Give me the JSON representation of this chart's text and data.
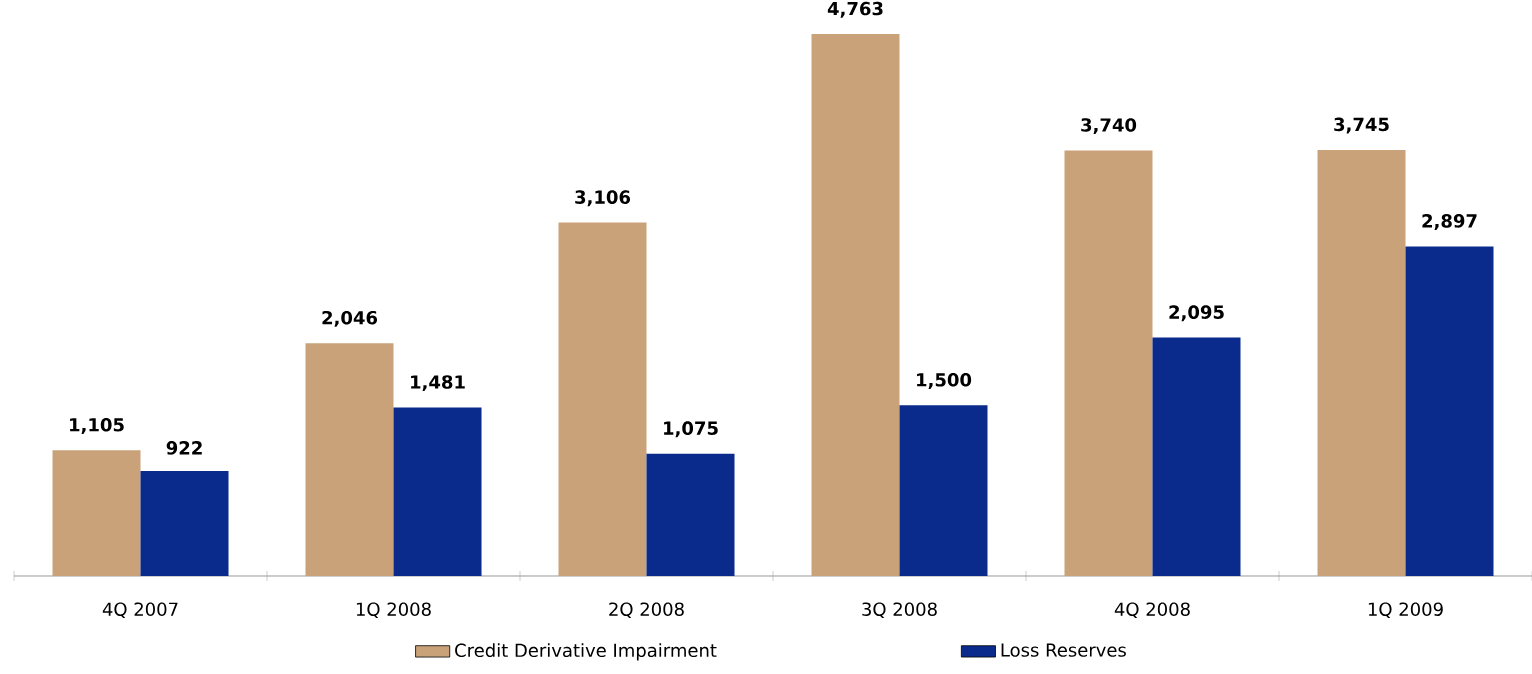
{
  "chart_data": {
    "type": "bar",
    "categories": [
      "4Q 2007",
      "1Q 2008",
      "2Q 2008",
      "3Q 2008",
      "4Q 2008",
      "1Q 2009"
    ],
    "series": [
      {
        "name": "Credit Derivative Impairment",
        "color": "#c9a27a",
        "values": [
          1105,
          2046,
          3106,
          4763,
          3740,
          3745
        ],
        "value_labels": [
          "1,105",
          "2,046",
          "3,106",
          "4,763",
          "3,740",
          "3,745"
        ]
      },
      {
        "name": "Loss Reserves",
        "color": "#0a2a8c",
        "values": [
          922,
          1481,
          1075,
          1500,
          2095,
          2897
        ],
        "value_labels": [
          "922",
          "1,481",
          "1,075",
          "1,500",
          "2,095",
          "2,897"
        ]
      }
    ],
    "legend": "bottom"
  }
}
